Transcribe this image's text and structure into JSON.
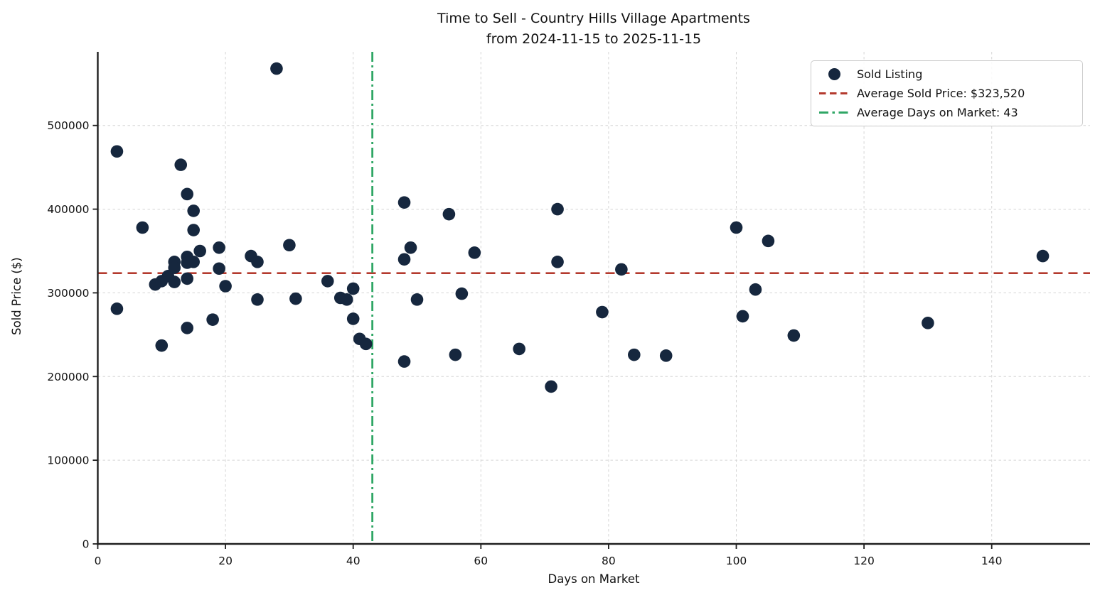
{
  "chart_data": {
    "type": "scatter",
    "title": "Time to Sell - Country Hills Village Apartments",
    "subtitle": "from 2024-11-15 to 2025-11-15",
    "xlabel": "Days on Market",
    "ylabel": "Sold Price ($)",
    "xlim": [
      0,
      155.4
    ],
    "ylim": [
      0,
      588000
    ],
    "x_ticks": [
      0,
      20,
      40,
      60,
      80,
      100,
      120,
      140
    ],
    "y_ticks": [
      0,
      100000,
      200000,
      300000,
      400000,
      500000
    ],
    "grid": true,
    "legend_position": "upper right",
    "series": [
      {
        "name": "Sold Listing",
        "points": [
          [
            3,
            469000
          ],
          [
            3,
            281000
          ],
          [
            7,
            378000
          ],
          [
            9,
            310000
          ],
          [
            10,
            314000
          ],
          [
            10,
            237000
          ],
          [
            11,
            320000
          ],
          [
            12,
            337000
          ],
          [
            12,
            330000
          ],
          [
            12,
            313000
          ],
          [
            13,
            453000
          ],
          [
            14,
            418000
          ],
          [
            14,
            343000
          ],
          [
            14,
            336000
          ],
          [
            14,
            317000
          ],
          [
            14,
            258000
          ],
          [
            15,
            398000
          ],
          [
            15,
            375000
          ],
          [
            15,
            337000
          ],
          [
            16,
            350000
          ],
          [
            18,
            268000
          ],
          [
            19,
            354000
          ],
          [
            19,
            329000
          ],
          [
            20,
            308000
          ],
          [
            24,
            344000
          ],
          [
            25,
            337000
          ],
          [
            25,
            292000
          ],
          [
            28,
            568000
          ],
          [
            30,
            357000
          ],
          [
            31,
            293000
          ],
          [
            36,
            314000
          ],
          [
            38,
            294000
          ],
          [
            39,
            292000
          ],
          [
            40,
            305000
          ],
          [
            40,
            269000
          ],
          [
            41,
            245000
          ],
          [
            42,
            239000
          ],
          [
            48,
            408000
          ],
          [
            48,
            340000
          ],
          [
            48,
            218000
          ],
          [
            49,
            354000
          ],
          [
            50,
            292000
          ],
          [
            55,
            394000
          ],
          [
            56,
            226000
          ],
          [
            57,
            299000
          ],
          [
            59,
            348000
          ],
          [
            66,
            233000
          ],
          [
            71,
            188000
          ],
          [
            72,
            400000
          ],
          [
            72,
            337000
          ],
          [
            79,
            277000
          ],
          [
            82,
            328000
          ],
          [
            84,
            226000
          ],
          [
            89,
            225000
          ],
          [
            100,
            378000
          ],
          [
            101,
            272000
          ],
          [
            103,
            304000
          ],
          [
            105,
            362000
          ],
          [
            109,
            249000
          ],
          [
            130,
            264000
          ],
          [
            148,
            344000
          ]
        ]
      }
    ],
    "avg_sold_price": 323520,
    "avg_days_on_market": 43
  },
  "legend": {
    "items": [
      {
        "label": "Sold Listing",
        "marker": "dot",
        "color": "#16273e"
      },
      {
        "label": "Average Sold Price: $323,520",
        "marker": "dashed-line",
        "color": "#b43a2e"
      },
      {
        "label": "Average Days on Market: 43",
        "marker": "dashdot-line",
        "color": "#2fa665"
      }
    ]
  },
  "colors": {
    "point": "#16273e",
    "avg_price_line": "#b43a2e",
    "avg_days_line": "#2fa665",
    "grid": "#d5d5d5",
    "spine": "#202020",
    "text": "#111111"
  }
}
